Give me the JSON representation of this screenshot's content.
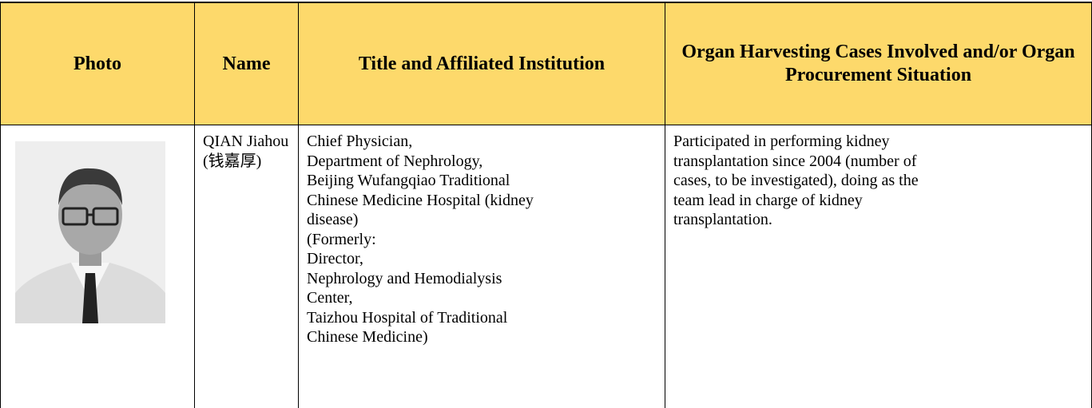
{
  "table": {
    "header": [
      "Photo",
      "Name",
      "Title and Affiliated Institution",
      "Organ Harvesting Cases Involved and/or Organ Procurement Situation"
    ],
    "rows": [
      {
        "name": [
          "QIAN Jiahou",
          "(钱嘉厚)"
        ],
        "title": [
          "Chief Physician,",
          "Department of Nephrology,",
          "Beijing Wufangqiao Traditional",
          "Chinese Medicine Hospital (kidney",
          "disease)",
          "(Formerly:",
          "Director,",
          "Nephrology and Hemodialysis",
          "Center,",
          "Taizhou Hospital of Traditional",
          "Chinese Medicine)"
        ],
        "cases": [
          "Participated in performing kidney",
          "transplantation since 2004 (number of",
          "cases, to be investigated), doing as the",
          "team lead in charge of kidney",
          "transplantation."
        ]
      }
    ]
  }
}
